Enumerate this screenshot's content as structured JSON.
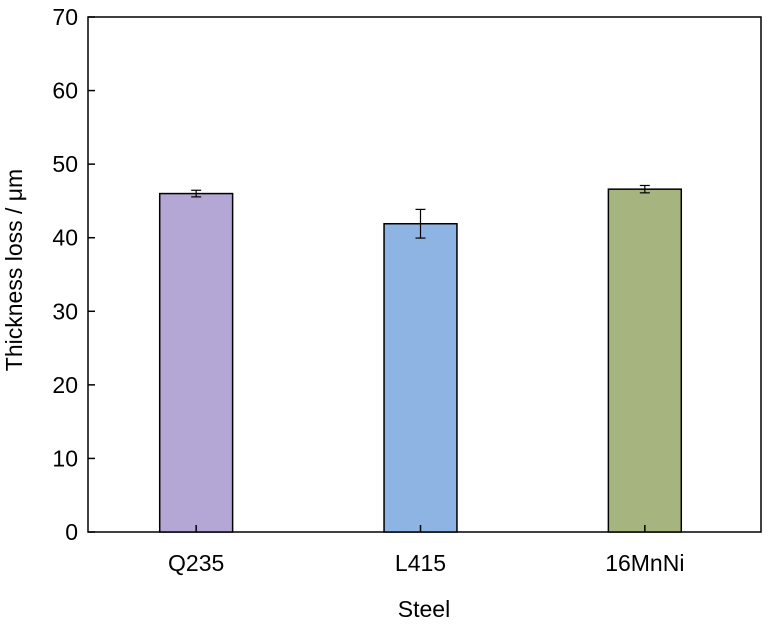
{
  "chart_data": {
    "type": "bar",
    "title": "",
    "xlabel": "Steel",
    "ylabel": "Thickness loss / μm",
    "categories": [
      "Q235",
      "L415",
      "16MnNi"
    ],
    "values": [
      46.0,
      41.9,
      46.6
    ],
    "errors": [
      0.45,
      1.95,
      0.5
    ],
    "ylim": [
      0,
      70
    ],
    "yticks": [
      0,
      10,
      20,
      30,
      40,
      50,
      60,
      70
    ],
    "grid": false,
    "colors": [
      "#b4a7d6",
      "#8eb4e3",
      "#a6b57f"
    ]
  }
}
